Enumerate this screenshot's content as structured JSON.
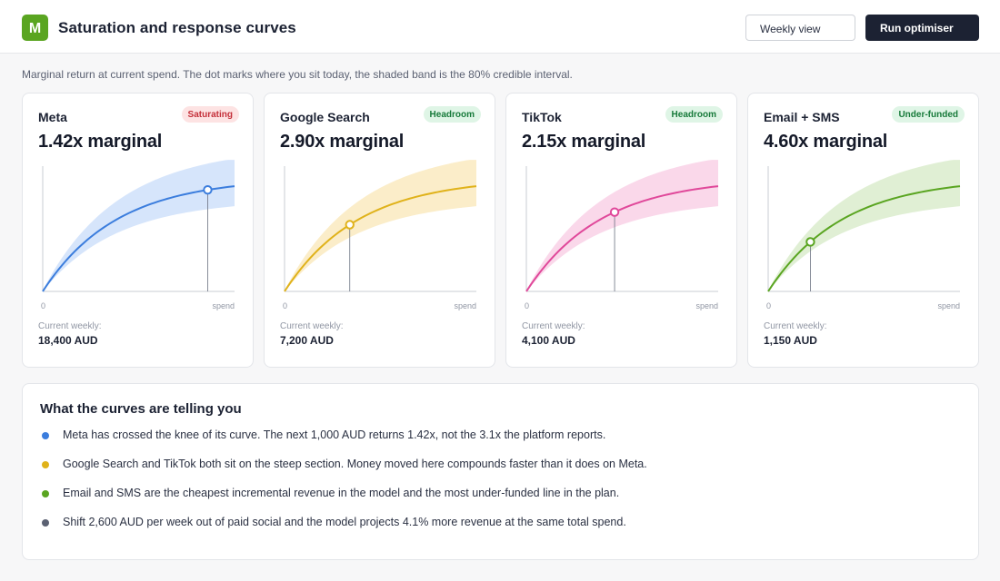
{
  "header": {
    "logo_letter": "M",
    "title": "Saturation and response curves",
    "view_select": "Weekly view",
    "run_button": "Run optimiser",
    "brand_color": "#5aa521"
  },
  "subtitle": "Marginal return at current spend. The dot marks where you sit today, the shaded band is the 80% credible interval.",
  "channels": [
    {
      "name": "Meta",
      "badge": "Saturating",
      "badge_kind": "saturating",
      "marginal": "1.42x marginal",
      "color": "#3b7ddd",
      "band_color": "#d6e5fb",
      "current_spend_fraction": 0.86,
      "axis_zero": "0",
      "axis_end": "spend",
      "current_label": "Current weekly:",
      "current_value": "18,400 AUD"
    },
    {
      "name": "Google Search",
      "badge": "Headroom",
      "badge_kind": "headroom",
      "marginal": "2.90x marginal",
      "color": "#e0b21a",
      "band_color": "#fbedc9",
      "current_spend_fraction": 0.34,
      "axis_zero": "0",
      "axis_end": "spend",
      "current_label": "Current weekly:",
      "current_value": "7,200 AUD"
    },
    {
      "name": "TikTok",
      "badge": "Headroom",
      "badge_kind": "headroom",
      "marginal": "2.15x marginal",
      "color": "#e0489a",
      "band_color": "#fad8ea",
      "current_spend_fraction": 0.46,
      "axis_zero": "0",
      "axis_end": "spend",
      "current_label": "Current weekly:",
      "current_value": "4,100 AUD"
    },
    {
      "name": "Email + SMS",
      "badge": "Under-funded",
      "badge_kind": "headroom",
      "marginal": "4.60x marginal",
      "color": "#5aa521",
      "band_color": "#e0efd4",
      "current_spend_fraction": 0.22,
      "axis_zero": "0",
      "axis_end": "spend",
      "current_label": "Current weekly:",
      "current_value": "1,150 AUD"
    }
  ],
  "insights": {
    "title": "What the curves are telling you",
    "items": [
      {
        "text": "Meta has crossed the knee of its curve. The next 1,000 AUD returns 1.42x, not the 3.1x the platform reports.",
        "color": "#3b7ddd"
      },
      {
        "text": "Google Search and TikTok both sit on the steep section. Money moved here compounds faster than it does on Meta.",
        "color": "#e0b21a"
      },
      {
        "text": "Email and SMS are the cheapest incremental revenue in the model and the most under-funded line in the plan.",
        "color": "#5aa521"
      },
      {
        "text": "Shift 2,600 AUD per week out of paid social and the model projects 4.1% more revenue at the same total spend.",
        "color": "#5b6172"
      }
    ]
  }
}
